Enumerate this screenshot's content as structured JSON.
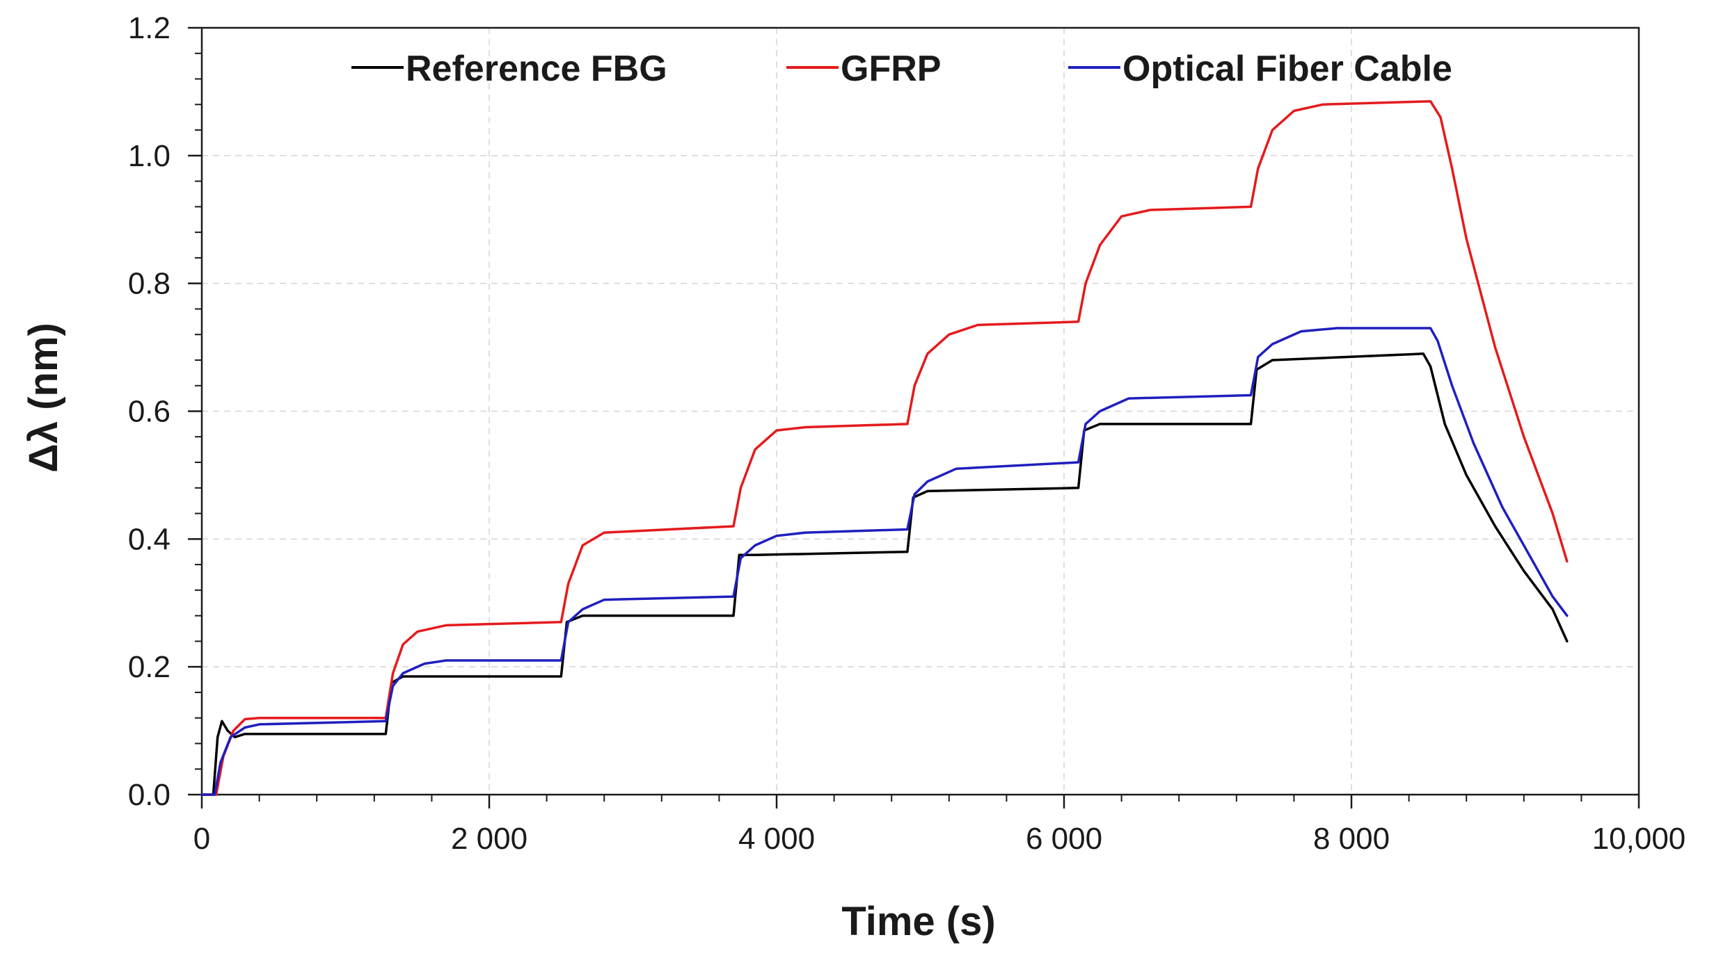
{
  "chart_data": {
    "type": "line",
    "title": "",
    "xlabel": "Time (s)",
    "ylabel": "Δλ (nm)",
    "xlim": [
      0,
      10000
    ],
    "ylim": [
      0,
      1.2
    ],
    "x_ticks": [
      {
        "value": 0,
        "label": "0"
      },
      {
        "value": 2000,
        "label": "2 000"
      },
      {
        "value": 4000,
        "label": "4 000"
      },
      {
        "value": 6000,
        "label": "6 000"
      },
      {
        "value": 8000,
        "label": "8 000"
      },
      {
        "value": 10000,
        "label": "10,000"
      }
    ],
    "y_ticks": [
      {
        "value": 0,
        "label": "0.0"
      },
      {
        "value": 0.2,
        "label": "0.2"
      },
      {
        "value": 0.4,
        "label": "0.4"
      },
      {
        "value": 0.6,
        "label": "0.6"
      },
      {
        "value": 0.8,
        "label": "0.8"
      },
      {
        "value": 1.0,
        "label": "1.0"
      },
      {
        "value": 1.2,
        "label": "1.2"
      }
    ],
    "grid": true,
    "legend_position": "top",
    "series": [
      {
        "name": "Reference FBG",
        "color": "#000000",
        "points": [
          [
            0,
            0
          ],
          [
            80,
            0
          ],
          [
            110,
            0.09
          ],
          [
            140,
            0.115
          ],
          [
            180,
            0.1
          ],
          [
            230,
            0.09
          ],
          [
            300,
            0.095
          ],
          [
            1280,
            0.095
          ],
          [
            1320,
            0.175
          ],
          [
            1400,
            0.185
          ],
          [
            2500,
            0.185
          ],
          [
            2540,
            0.27
          ],
          [
            2650,
            0.28
          ],
          [
            3700,
            0.28
          ],
          [
            3740,
            0.375
          ],
          [
            3850,
            0.375
          ],
          [
            4910,
            0.38
          ],
          [
            4950,
            0.465
          ],
          [
            5050,
            0.475
          ],
          [
            6100,
            0.48
          ],
          [
            6140,
            0.57
          ],
          [
            6250,
            0.58
          ],
          [
            7300,
            0.58
          ],
          [
            7340,
            0.665
          ],
          [
            7450,
            0.68
          ],
          [
            8500,
            0.69
          ],
          [
            8550,
            0.67
          ],
          [
            8650,
            0.58
          ],
          [
            8800,
            0.5
          ],
          [
            9000,
            0.42
          ],
          [
            9200,
            0.35
          ],
          [
            9400,
            0.29
          ],
          [
            9500,
            0.24
          ]
        ]
      },
      {
        "name": "GFRP",
        "color": "#e41a1c",
        "points": [
          [
            0,
            0
          ],
          [
            100,
            0
          ],
          [
            150,
            0.06
          ],
          [
            220,
            0.1
          ],
          [
            300,
            0.118
          ],
          [
            400,
            0.12
          ],
          [
            1280,
            0.12
          ],
          [
            1330,
            0.19
          ],
          [
            1400,
            0.235
          ],
          [
            1500,
            0.255
          ],
          [
            1700,
            0.265
          ],
          [
            2500,
            0.27
          ],
          [
            2550,
            0.33
          ],
          [
            2650,
            0.39
          ],
          [
            2800,
            0.41
          ],
          [
            3700,
            0.42
          ],
          [
            3750,
            0.48
          ],
          [
            3850,
            0.54
          ],
          [
            4000,
            0.57
          ],
          [
            4200,
            0.575
          ],
          [
            4910,
            0.58
          ],
          [
            4960,
            0.64
          ],
          [
            5050,
            0.69
          ],
          [
            5200,
            0.72
          ],
          [
            5400,
            0.735
          ],
          [
            6100,
            0.74
          ],
          [
            6150,
            0.8
          ],
          [
            6250,
            0.86
          ],
          [
            6400,
            0.905
          ],
          [
            6600,
            0.915
          ],
          [
            7300,
            0.92
          ],
          [
            7350,
            0.98
          ],
          [
            7450,
            1.04
          ],
          [
            7600,
            1.07
          ],
          [
            7800,
            1.08
          ],
          [
            8550,
            1.085
          ],
          [
            8620,
            1.06
          ],
          [
            8700,
            0.98
          ],
          [
            8800,
            0.87
          ],
          [
            9000,
            0.7
          ],
          [
            9200,
            0.56
          ],
          [
            9400,
            0.44
          ],
          [
            9500,
            0.365
          ]
        ]
      },
      {
        "name": "Optical Fiber Cable",
        "color": "#1f1fbf",
        "points": [
          [
            0,
            0
          ],
          [
            90,
            0
          ],
          [
            130,
            0.05
          ],
          [
            200,
            0.09
          ],
          [
            300,
            0.105
          ],
          [
            400,
            0.11
          ],
          [
            1280,
            0.115
          ],
          [
            1330,
            0.17
          ],
          [
            1400,
            0.19
          ],
          [
            1550,
            0.205
          ],
          [
            1700,
            0.21
          ],
          [
            2500,
            0.21
          ],
          [
            2550,
            0.27
          ],
          [
            2650,
            0.29
          ],
          [
            2800,
            0.305
          ],
          [
            3700,
            0.31
          ],
          [
            3750,
            0.37
          ],
          [
            3850,
            0.39
          ],
          [
            4000,
            0.405
          ],
          [
            4200,
            0.41
          ],
          [
            4910,
            0.415
          ],
          [
            4960,
            0.47
          ],
          [
            5050,
            0.49
          ],
          [
            5250,
            0.51
          ],
          [
            6100,
            0.52
          ],
          [
            6150,
            0.58
          ],
          [
            6250,
            0.6
          ],
          [
            6450,
            0.62
          ],
          [
            7300,
            0.625
          ],
          [
            7350,
            0.685
          ],
          [
            7450,
            0.705
          ],
          [
            7650,
            0.725
          ],
          [
            7900,
            0.73
          ],
          [
            8550,
            0.73
          ],
          [
            8600,
            0.71
          ],
          [
            8700,
            0.64
          ],
          [
            8850,
            0.55
          ],
          [
            9050,
            0.45
          ],
          [
            9250,
            0.37
          ],
          [
            9400,
            0.31
          ],
          [
            9500,
            0.28
          ]
        ]
      }
    ]
  }
}
